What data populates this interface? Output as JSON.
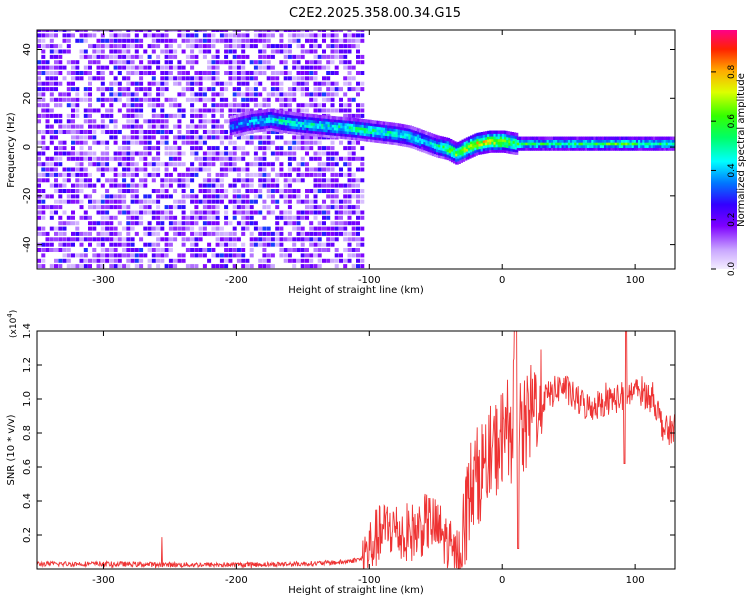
{
  "title": "C2E2.2025.358.00.34.G15",
  "colors": {
    "snr_line": "#ee3333",
    "axis": "#000000",
    "background": "#ffffff"
  },
  "chart_data": [
    {
      "type": "heatmap",
      "title": "C2E2.2025.358.00.34.G15",
      "xlabel": "Height of straight line (km)",
      "ylabel": "Frequency (Hz)",
      "xlim": [
        -350,
        130
      ],
      "ylim": [
        -50,
        48
      ],
      "xticks": [
        -300,
        -200,
        -100,
        0,
        100
      ],
      "yticks": [
        -40,
        -20,
        0,
        20,
        40
      ],
      "colorbar": {
        "label": "Normalized spectral amplitude",
        "range": [
          0.0,
          0.97
        ],
        "ticks": [
          0.0,
          0.2,
          0.4,
          0.6,
          0.8
        ],
        "tick_labels": [
          "0.0",
          "0.2",
          "0.4",
          "0.6",
          "0.8"
        ]
      },
      "noise_region_x": [
        -350,
        -105
      ],
      "ridge": {
        "x": [
          -205,
          -190,
          -175,
          -165,
          -150,
          -130,
          -110,
          -95,
          -80,
          -70,
          -60,
          -50,
          -42,
          -35,
          -28,
          -20,
          -10,
          0,
          10,
          20,
          40,
          60,
          90,
          110,
          130
        ],
        "freq": [
          8,
          10,
          11,
          10,
          9,
          8,
          7,
          6,
          5,
          4,
          2,
          0,
          -1,
          -3,
          -1,
          1,
          2,
          2,
          1,
          1,
          1,
          1,
          1,
          1,
          1
        ],
        "amp": [
          0.35,
          0.45,
          0.5,
          0.5,
          0.5,
          0.5,
          0.55,
          0.55,
          0.5,
          0.5,
          0.45,
          0.5,
          0.65,
          0.7,
          0.75,
          0.8,
          0.8,
          0.75,
          0.6,
          0.55,
          0.55,
          0.55,
          0.6,
          0.55,
          0.5
        ]
      }
    },
    {
      "type": "line",
      "xlabel": "Height of straight line (km)",
      "ylabel": "SNR (10 * v/v)",
      "multiplier": "(x10^4)",
      "multiplier_base": "(x10",
      "multiplier_exp": "4",
      "multiplier_close": ")",
      "xlim": [
        -350,
        130
      ],
      "ylim": [
        0,
        1.4
      ],
      "xticks": [
        -300,
        -200,
        -100,
        0,
        100
      ],
      "yticks": [
        0.2,
        0.4,
        0.6,
        0.8,
        1.0,
        1.2,
        1.4
      ],
      "ytick_labels": [
        "0.2",
        "0.4",
        "0.6",
        "0.8",
        "1.0",
        "1.2",
        "1.4"
      ],
      "series": [
        {
          "name": "SNR",
          "x": [
            -350,
            -300,
            -250,
            -200,
            -150,
            -120,
            -105,
            -95,
            -85,
            -75,
            -65,
            -55,
            -45,
            -35,
            -30,
            -25,
            -15,
            -5,
            5,
            10,
            15,
            25,
            35,
            45,
            55,
            65,
            75,
            85,
            95,
            105,
            115,
            120,
            125,
            130
          ],
          "y": [
            0.03,
            0.03,
            0.025,
            0.025,
            0.03,
            0.04,
            0.06,
            0.18,
            0.25,
            0.2,
            0.22,
            0.28,
            0.2,
            0.05,
            0.15,
            0.45,
            0.6,
            0.7,
            0.85,
            1.0,
            0.78,
            0.98,
            1.02,
            1.08,
            1.0,
            0.95,
            0.98,
            1.0,
            1.03,
            1.05,
            0.98,
            0.85,
            0.8,
            0.85
          ]
        }
      ]
    }
  ]
}
